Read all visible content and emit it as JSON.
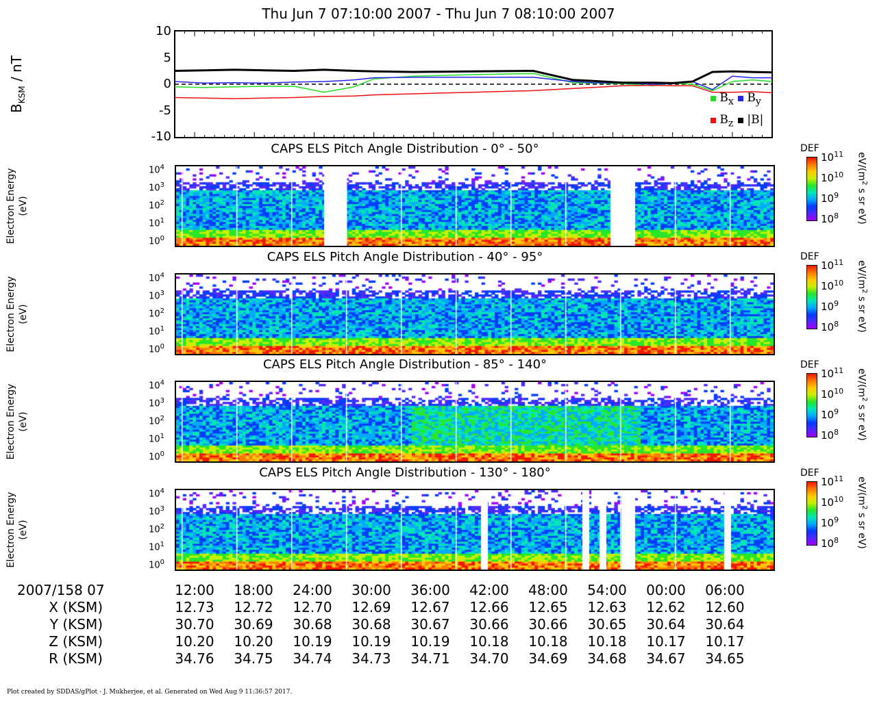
{
  "title": "Thu Jun 7 07:10:00 2007 - Thu Jun 7 08:10:00 2007",
  "colors": {
    "bx": "#22dd22",
    "by": "#2222ee",
    "bz": "#ee1111",
    "btot": "#000000"
  },
  "mag_panel": {
    "ylabel_main": "B",
    "ylabel_sub": "KSM",
    "ylabel_unit": " / nT",
    "yticks": [
      "10",
      "5",
      "0",
      "-5",
      "-10"
    ],
    "legend": [
      {
        "name": "B",
        "sub": "x",
        "color_key": "bx"
      },
      {
        "name": "B",
        "sub": "y",
        "color_key": "by"
      },
      {
        "name": "B",
        "sub": "z",
        "color_key": "bz"
      },
      {
        "name": "|B|",
        "sub": "",
        "color_key": "btot"
      }
    ]
  },
  "spectro_panels": [
    {
      "title": "CAPS ELS Pitch Angle Distribution - 0° - 50°",
      "ylabel1": "Electron Energy",
      "ylabel2": "(eV)"
    },
    {
      "title": "CAPS ELS Pitch Angle Distribution - 40° - 95°",
      "ylabel1": "Electron Energy",
      "ylabel2": "(eV)"
    },
    {
      "title": "CAPS ELS Pitch Angle Distribution - 85° - 140°",
      "ylabel1": "Electron Energy",
      "ylabel2": "(eV)"
    },
    {
      "title": "CAPS ELS Pitch Angle Distribution - 130° - 180°",
      "ylabel1": "Electron Energy",
      "ylabel2": "(eV)"
    }
  ],
  "energy_ticks": [
    {
      "base": "10",
      "exp": "4"
    },
    {
      "base": "10",
      "exp": "3"
    },
    {
      "base": "10",
      "exp": "2"
    },
    {
      "base": "10",
      "exp": "1"
    },
    {
      "base": "10",
      "exp": "0"
    }
  ],
  "colorbar": {
    "label": "DEF",
    "unit_pre": "eV/(m",
    "unit_exp": "2",
    "unit_post": " s sr eV)",
    "ticks": [
      {
        "base": "10",
        "exp": "11"
      },
      {
        "base": "10",
        "exp": "10"
      },
      {
        "base": "10",
        "exp": "9"
      },
      {
        "base": "10",
        "exp": "8"
      }
    ]
  },
  "bottom_table": {
    "date_label": "2007/158 07",
    "times": [
      "12:00",
      "18:00",
      "24:00",
      "30:00",
      "36:00",
      "42:00",
      "48:00",
      "54:00",
      "00:00",
      "06:00"
    ],
    "rows": [
      {
        "label": "X (KSM)",
        "values": [
          "12.73",
          "12.72",
          "12.70",
          "12.69",
          "12.67",
          "12.66",
          "12.65",
          "12.63",
          "12.62",
          "12.60"
        ]
      },
      {
        "label": "Y (KSM)",
        "values": [
          "30.70",
          "30.69",
          "30.68",
          "30.68",
          "30.67",
          "30.66",
          "30.66",
          "30.65",
          "30.64",
          "30.64"
        ]
      },
      {
        "label": "Z (KSM)",
        "values": [
          "10.20",
          "10.20",
          "10.19",
          "10.19",
          "10.19",
          "10.18",
          "10.18",
          "10.18",
          "10.17",
          "10.17"
        ]
      },
      {
        "label": "R (KSM)",
        "values": [
          "34.76",
          "34.75",
          "34.74",
          "34.73",
          "34.71",
          "34.70",
          "34.69",
          "34.68",
          "34.67",
          "34.65"
        ]
      }
    ]
  },
  "footer": "Plot created by SDDAS/gPlot - J. Mukherjee, et al.  Generated on Wed Aug 9 11:36:57 2017.",
  "chart_data": {
    "type": "line",
    "x_unit": "minutes after 07:10 UT",
    "x_range": [
      0,
      60
    ],
    "ylim": [
      -10,
      10
    ],
    "series": [
      {
        "name": "Bx",
        "x": [
          0,
          3,
          6,
          9,
          12,
          15,
          18,
          20,
          24,
          30,
          36,
          40,
          42,
          45,
          48,
          50,
          52,
          54,
          56,
          58,
          60
        ],
        "values": [
          -0.5,
          -0.6,
          -0.5,
          -0.4,
          -0.4,
          -1.5,
          -0.5,
          1.0,
          1.5,
          1.8,
          2.0,
          0.3,
          0.2,
          0.1,
          -0.3,
          0.2,
          0.0,
          -1.2,
          0.5,
          0.8,
          0.5
        ]
      },
      {
        "name": "By",
        "x": [
          0,
          3,
          6,
          9,
          12,
          15,
          18,
          20,
          24,
          30,
          36,
          40,
          42,
          45,
          48,
          50,
          52,
          54,
          56,
          58,
          60
        ],
        "values": [
          0.5,
          0.2,
          0.3,
          0.2,
          0.4,
          0.5,
          0.8,
          1.2,
          1.3,
          1.3,
          1.3,
          0.5,
          0.3,
          0.2,
          0.0,
          0.1,
          0.5,
          -1.0,
          1.5,
          1.2,
          1.2
        ]
      },
      {
        "name": "Bz",
        "x": [
          0,
          3,
          6,
          9,
          12,
          15,
          18,
          20,
          24,
          30,
          36,
          40,
          42,
          45,
          48,
          50,
          52,
          54,
          56,
          58,
          60
        ],
        "values": [
          -2.5,
          -2.6,
          -2.7,
          -2.6,
          -2.5,
          -2.3,
          -2.2,
          -2.0,
          -1.8,
          -1.5,
          -1.2,
          -0.8,
          -0.6,
          -0.3,
          -0.2,
          -0.3,
          -0.3,
          -1.5,
          -1.5,
          -1.4,
          -1.6
        ]
      },
      {
        "name": "|B|",
        "x": [
          0,
          3,
          6,
          9,
          12,
          15,
          18,
          20,
          24,
          30,
          36,
          40,
          42,
          45,
          48,
          50,
          52,
          54,
          56,
          58,
          60
        ],
        "values": [
          2.5,
          2.6,
          2.7,
          2.6,
          2.5,
          2.7,
          2.5,
          2.4,
          2.3,
          2.4,
          2.5,
          0.8,
          0.6,
          0.3,
          0.3,
          0.2,
          0.5,
          2.3,
          2.4,
          2.3,
          2.2
        ]
      }
    ]
  }
}
